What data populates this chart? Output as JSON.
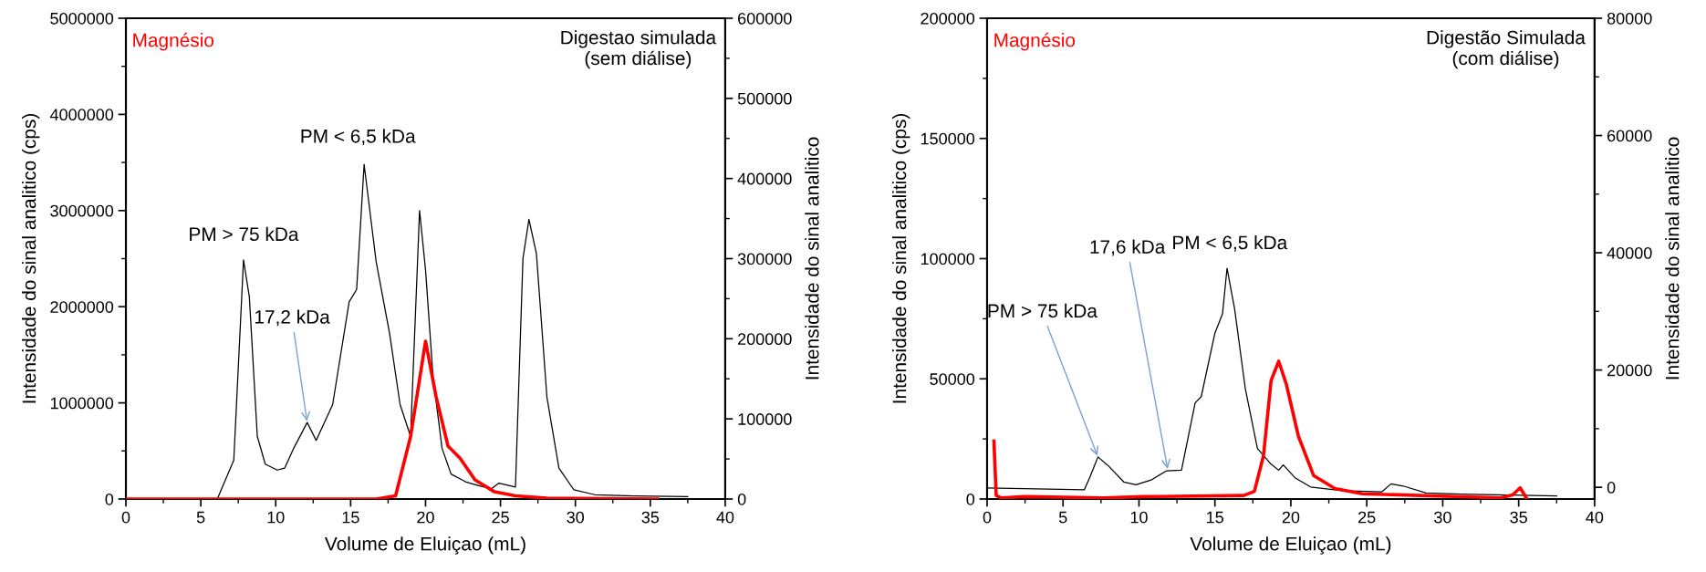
{
  "chart_data": [
    {
      "type": "line",
      "title": "Digestao simulada\n(sem diálise)",
      "xlabel": "Volume de Eluiçao (mL)",
      "ylabel": "Intensidade do sinal analitico (cps)",
      "y2label": "Intensidade do sinal analitico",
      "xlim": [
        0,
        40
      ],
      "xticks": [
        0,
        5,
        10,
        15,
        20,
        25,
        30,
        35,
        40
      ],
      "ylim": [
        0,
        5000000
      ],
      "yticks": [
        0,
        1000000,
        2000000,
        3000000,
        4000000,
        5000000
      ],
      "y2lim": [
        0,
        600000
      ],
      "y2ticks": [
        0,
        100000,
        200000,
        300000,
        400000,
        500000,
        600000
      ],
      "grid": false,
      "legend": "top left",
      "series": [
        {
          "color": "#000000",
          "x": [
            6.1,
            7.2,
            7.85,
            8.24,
            8.77,
            9.3,
            10.1,
            10.6,
            11.2,
            12.1,
            12.7,
            13.8,
            14.9,
            15.4,
            15.9,
            16.7,
            17.6,
            18.3,
            19.0,
            19.6,
            20.0,
            20.5,
            21.1,
            21.7,
            22.7,
            23.6,
            24.4,
            24.9,
            26.0,
            26.5,
            26.9,
            27.4,
            28.1,
            28.9,
            29.9,
            31.3,
            33.9,
            37.5
          ],
          "values": [
            0,
            404000,
            2487000,
            2100000,
            652000,
            363000,
            301000,
            322000,
            528000,
            796000,
            610000,
            982000,
            2050000,
            2180000,
            3480000,
            2470000,
            1720000,
            982000,
            652000,
            3000000,
            2380000,
            1270000,
            528000,
            260000,
            177000,
            136000,
            107000,
            165000,
            124000,
            2500000,
            2910000,
            2550000,
            1060000,
            322000,
            95000,
            45000,
            33000,
            25000
          ]
        },
        {
          "name": "Magnésio",
          "color": "#ff0000",
          "axis": "y2",
          "x": [
            0,
            16.7,
            18.0,
            19.0,
            20.0,
            20.7,
            21.5,
            22.3,
            23.3,
            24.6,
            26.0,
            28.1,
            35.5
          ],
          "values": [
            0,
            0,
            4000,
            78000,
            197000,
            128000,
            66000,
            51000,
            24000,
            9000,
            4000,
            1000,
            0
          ]
        }
      ],
      "annotations": [
        {
          "text": "PM > 75 kDa",
          "x": 7.85,
          "y": 2487000
        },
        {
          "text": "17,2 kDa",
          "x": 12.1,
          "y": 796000
        },
        {
          "text": "PM < 6,5 kDa",
          "x": 15.9,
          "y": 3480000
        }
      ]
    },
    {
      "type": "line",
      "title": "Digestão Simulada\n(com diálise)",
      "xlabel": "Volume de Eluiçao (mL)",
      "ylabel": "Intensidade do sinal analitico (cps)",
      "y2label": "Intensidade do sinal analitico",
      "xlim": [
        0,
        40
      ],
      "xticks": [
        0,
        5,
        10,
        15,
        20,
        25,
        30,
        35,
        40
      ],
      "ylim": [
        0,
        200000
      ],
      "yticks": [
        0,
        50000,
        100000,
        150000,
        200000
      ],
      "y2lim": [
        -2000,
        80000
      ],
      "y2ticks": [
        0,
        20000,
        40000,
        60000,
        80000
      ],
      "grid": false,
      "legend": "top left",
      "series": [
        {
          "color": "#000000",
          "x": [
            0.0,
            6.4,
            6.8,
            7.3,
            8.0,
            9.0,
            9.8,
            10.8,
            11.8,
            12.8,
            13.7,
            14.1,
            15.0,
            15.5,
            15.8,
            16.3,
            17.0,
            17.8,
            18.7,
            19.2,
            19.5,
            20.3,
            21.3,
            23.4,
            26.0,
            26.6,
            27.4,
            28.9,
            31.2,
            37.5
          ],
          "values": [
            4600,
            3800,
            9600,
            17500,
            13700,
            7100,
            5900,
            7900,
            11700,
            12000,
            40000,
            42600,
            69000,
            77000,
            96000,
            79000,
            46000,
            21000,
            14500,
            12000,
            14200,
            8700,
            5000,
            3500,
            3000,
            6300,
            5400,
            2500,
            2000,
            1300
          ]
        },
        {
          "name": "Magnésio",
          "color": "#ff0000",
          "axis": "y2",
          "x": [
            0.45,
            0.6,
            0.9,
            2.5,
            7.7,
            10.3,
            16.9,
            17.6,
            18.2,
            18.7,
            19.2,
            19.7,
            20.5,
            21.5,
            22.9,
            24.7,
            33.8,
            34.6,
            35.1,
            35.5
          ],
          "values": [
            7900,
            -1400,
            -1800,
            -1600,
            -1800,
            -1600,
            -1400,
            -700,
            5400,
            18200,
            21500,
            17600,
            8700,
            2000,
            -200,
            -1100,
            -1800,
            -1300,
            -100,
            -1800
          ]
        }
      ],
      "annotations": [
        {
          "text": "PM > 75 kDa",
          "x": 7.3,
          "y": 17500
        },
        {
          "text": "17,6 kDa",
          "x": 11.9,
          "y": 12000
        },
        {
          "text": "PM < 6,5 kDa",
          "x": 15.8,
          "y": 96000
        }
      ]
    }
  ]
}
